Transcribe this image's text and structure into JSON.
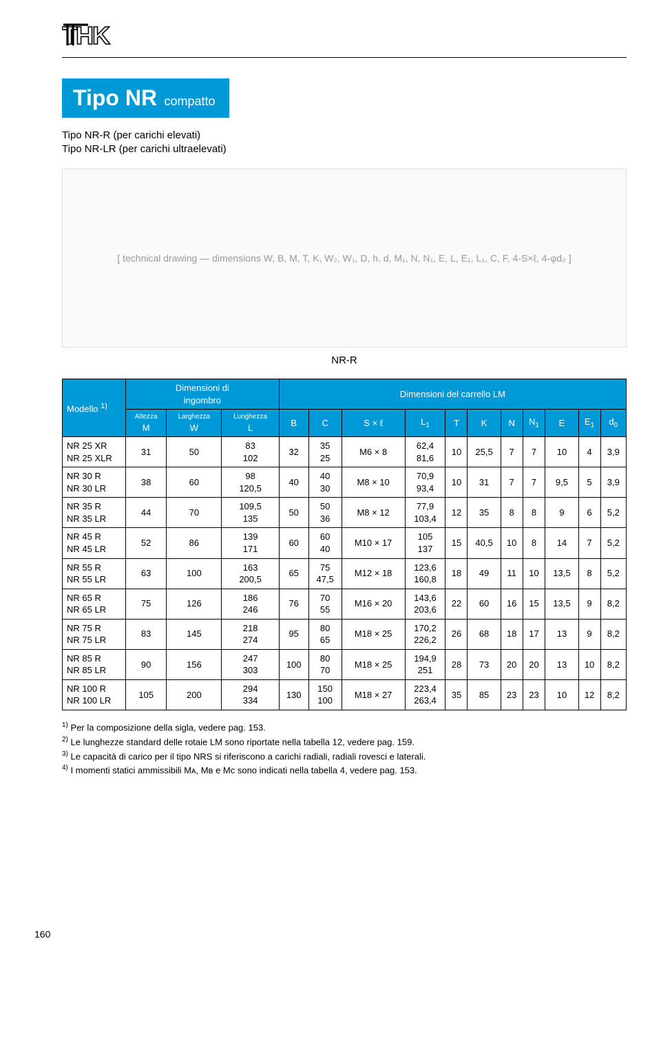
{
  "logo_text": "THK",
  "title": {
    "main": "Tipo NR",
    "sub": "compatto"
  },
  "subtitles": [
    "Tipo NR-R   (per carichi elevati)",
    "Tipo NR-LR (per carichi ultraelevati)"
  ],
  "diagram_placeholder": "[ technical drawing — dimensions W, B, M, T, K, W₂, W₁, D, h, d, M₁, N, N₁, E, L, E₁, L₁, C, F, 4-S×ℓ, 4-φd₀ ]",
  "diagram_caption": "NR-R",
  "table": {
    "header_group1": "Dimensioni di\ningombro",
    "header_group2": "Dimensioni del carrello LM",
    "col_model": "Modello ",
    "col_model_sup": "1)",
    "cols_dim": [
      {
        "top": "Altezza",
        "sym": "M"
      },
      {
        "top": "Larghezza",
        "sym": "W"
      },
      {
        "top": "Lunghezza",
        "sym": "L"
      }
    ],
    "cols_carr": [
      "B",
      "C",
      "S × ℓ",
      "L₁",
      "T",
      "K",
      "N",
      "N₁",
      "E",
      "E₁",
      "d₀"
    ],
    "rows": [
      {
        "model": "NR 25 XR\nNR 25 XLR",
        "M": "31",
        "W": "50",
        "L": "83\n102",
        "B": "32",
        "C": "35\n25",
        "S": "M6 × 8",
        "L1": "62,4\n81,6",
        "T": "10",
        "K": "25,5",
        "N": "7",
        "N1": "7",
        "E": "10",
        "E1": "4",
        "d0": "3,9"
      },
      {
        "model": "NR 30 R\nNR 30 LR",
        "M": "38",
        "W": "60",
        "L": "98\n120,5",
        "B": "40",
        "C": "40\n30",
        "S": "M8 × 10",
        "L1": "70,9\n93,4",
        "T": "10",
        "K": "31",
        "N": "7",
        "N1": "7",
        "E": "9,5",
        "E1": "5",
        "d0": "3,9"
      },
      {
        "model": "NR 35 R\nNR 35 LR",
        "M": "44",
        "W": "70",
        "L": "109,5\n135",
        "B": "50",
        "C": "50\n36",
        "S": "M8 × 12",
        "L1": "77,9\n103,4",
        "T": "12",
        "K": "35",
        "N": "8",
        "N1": "8",
        "E": "9",
        "E1": "6",
        "d0": "5,2"
      },
      {
        "model": "NR 45 R\nNR 45 LR",
        "M": "52",
        "W": "86",
        "L": "139\n171",
        "B": "60",
        "C": "60\n40",
        "S": "M10 × 17",
        "L1": "105\n137",
        "T": "15",
        "K": "40,5",
        "N": "10",
        "N1": "8",
        "E": "14",
        "E1": "7",
        "d0": "5,2"
      },
      {
        "model": "NR 55 R\nNR 55 LR",
        "M": "63",
        "W": "100",
        "L": "163\n200,5",
        "B": "65",
        "C": "75\n47,5",
        "S": "M12 × 18",
        "L1": "123,6\n160,8",
        "T": "18",
        "K": "49",
        "N": "11",
        "N1": "10",
        "E": "13,5",
        "E1": "8",
        "d0": "5,2"
      },
      {
        "model": "NR 65 R\nNR 65 LR",
        "M": "75",
        "W": "126",
        "L": "186\n246",
        "B": "76",
        "C": "70\n55",
        "S": "M16 × 20",
        "L1": "143,6\n203,6",
        "T": "22",
        "K": "60",
        "N": "16",
        "N1": "15",
        "E": "13,5",
        "E1": "9",
        "d0": "8,2"
      },
      {
        "model": "NR 75 R\nNR 75 LR",
        "M": "83",
        "W": "145",
        "L": "218\n274",
        "B": "95",
        "C": "80\n65",
        "S": "M18 × 25",
        "L1": "170,2\n226,2",
        "T": "26",
        "K": "68",
        "N": "18",
        "N1": "17",
        "E": "13",
        "E1": "9",
        "d0": "8,2"
      },
      {
        "model": "NR 85 R\nNR 85 LR",
        "M": "90",
        "W": "156",
        "L": "247\n303",
        "B": "100",
        "C": "80\n70",
        "S": "M18 × 25",
        "L1": "194,9\n251",
        "T": "28",
        "K": "73",
        "N": "20",
        "N1": "20",
        "E": "13",
        "E1": "10",
        "d0": "8,2"
      },
      {
        "model": "NR 100 R\nNR 100 LR",
        "M": "105",
        "W": "200",
        "L": "294\n334",
        "B": "130",
        "C": "150\n100",
        "S": "M18 × 27",
        "L1": "223,4\n263,4",
        "T": "35",
        "K": "85",
        "N": "23",
        "N1": "23",
        "E": "10",
        "E1": "12",
        "d0": "8,2"
      }
    ]
  },
  "footnotes": [
    {
      "n": "1)",
      "t": "Per la composizione della sigla, vedere pag. 153."
    },
    {
      "n": "2)",
      "t": "Le lunghezze standard delle rotaie LM sono riportate nella tabella 12, vedere pag. 159."
    },
    {
      "n": "3)",
      "t": "Le capacità di carico per il tipo NRS si riferiscono a carichi radiali, radiali rovesci e laterali."
    },
    {
      "n": "4)",
      "t": "I momenti statici ammissibili Mᴀ, Mʙ e Mᴄ sono indicati nella tabella 4, vedere pag. 153."
    }
  ],
  "page_number": "160",
  "colors": {
    "accent": "#0099d8",
    "border": "#000000",
    "text": "#000000"
  }
}
